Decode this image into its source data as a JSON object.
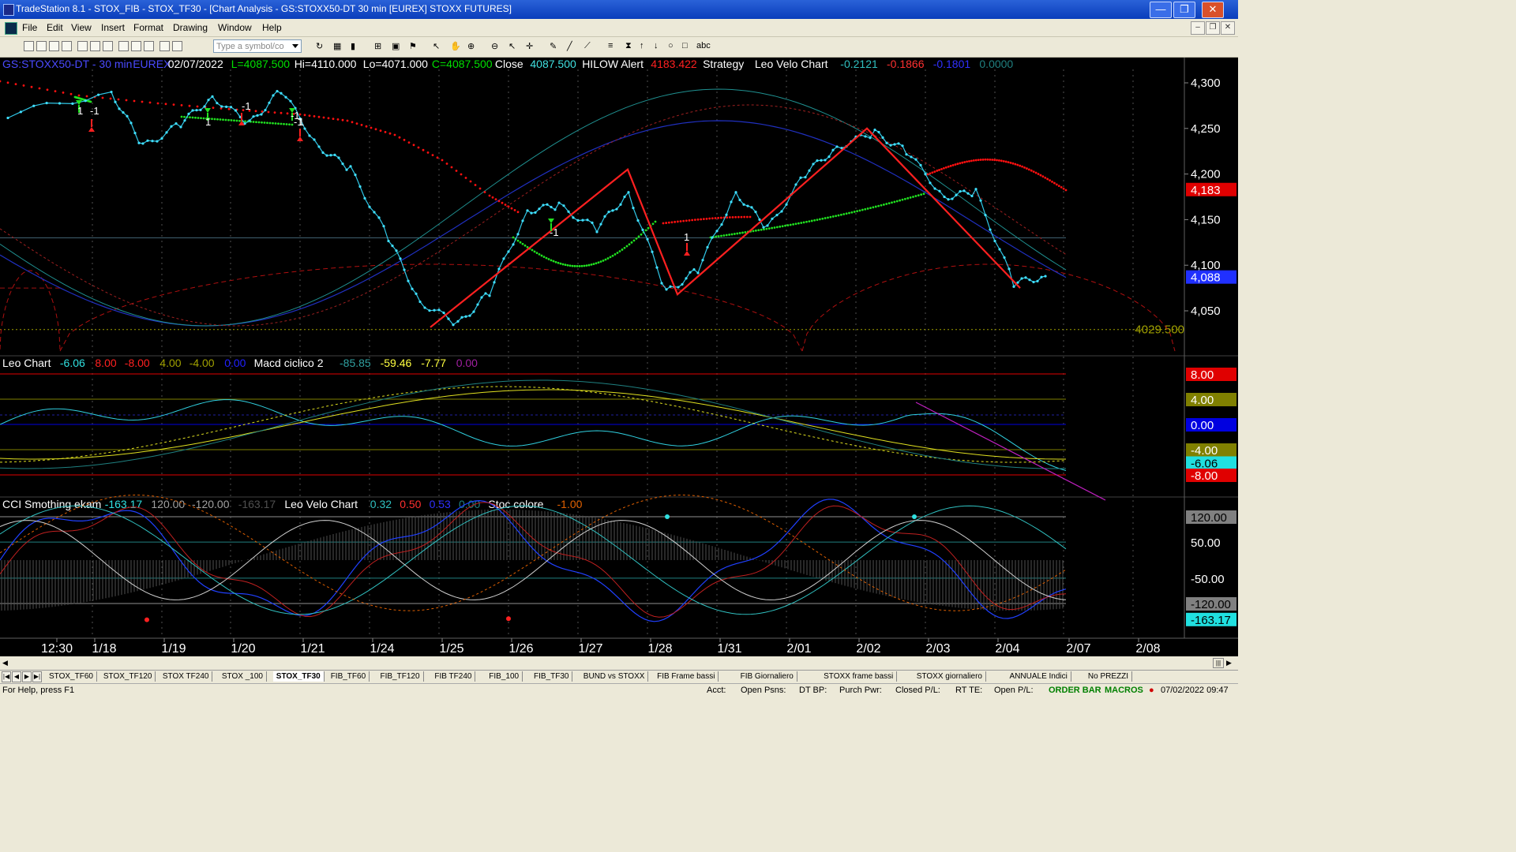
{
  "window": {
    "title": "TradeStation 8.1 - STOX_FIB - STOX_TF30 - [Chart Analysis - GS:STOXX50-DT  30 min  [EUREX] STOXX FUTURES]"
  },
  "window_controls": {
    "minimize": "—",
    "restore": "❐",
    "close": "✕"
  },
  "menu": {
    "items": [
      "File",
      "Edit",
      "View",
      "Insert",
      "Format",
      "Drawing",
      "Window",
      "Help"
    ]
  },
  "toolbar": {
    "symbol_placeholder": "Type a symbol/co"
  },
  "chart": {
    "header": [
      {
        "text": "GS:STOXX50-DT - 30 min",
        "color": "#4a4aff"
      },
      {
        "text": "EUREX",
        "color": "#4a4aff"
      },
      {
        "text": "02/07/2022",
        "color": "#ffffff"
      },
      {
        "text": "L=4087.500",
        "color": "#00e000"
      },
      {
        "text": "Hi=4110.000",
        "color": "#ffffff"
      },
      {
        "text": "Lo=4071.000",
        "color": "#ffffff"
      },
      {
        "text": "C=4087.500",
        "color": "#00e000"
      },
      {
        "text": "Close",
        "color": "#ffffff"
      },
      {
        "text": "4087.500",
        "color": "#40e0e0"
      },
      {
        "text": "HILOW Alert",
        "color": "#ffffff"
      },
      {
        "text": "4183.422",
        "color": "#ff2020"
      },
      {
        "text": "Strategy",
        "color": "#ffffff"
      },
      {
        "text": "Leo Velo Chart",
        "color": "#ffffff"
      },
      {
        "text": "-0.2121",
        "color": "#30c0c0"
      },
      {
        "text": "-0.1866",
        "color": "#ff3030"
      },
      {
        "text": "-0.1801",
        "color": "#3030ff"
      },
      {
        "text": "0.0000",
        "color": "#208080"
      }
    ],
    "price_axis": [
      "4,300",
      "4,250",
      "4,200",
      "4,150",
      "4,100",
      "4,050"
    ],
    "price_tags": [
      {
        "text": "4,183",
        "bg": "#e00000",
        "fg": "#ffffff"
      },
      {
        "text": "4,088",
        "bg": "#2030ff",
        "fg": "#ffffff"
      }
    ],
    "hline_label": "4029.500",
    "arrow_labels": [
      "1",
      "-1",
      "1",
      "-1",
      "-1",
      "1",
      "-1",
      "1",
      "-1"
    ],
    "pane2_header": [
      {
        "text": "Leo Chart",
        "color": "#ffffff"
      },
      {
        "text": "-6.06",
        "color": "#30e0e0"
      },
      {
        "text": "8.00",
        "color": "#ff2020"
      },
      {
        "text": "-8.00",
        "color": "#ff2020"
      },
      {
        "text": "4.00",
        "color": "#a0a000"
      },
      {
        "text": "-4.00",
        "color": "#a0a000"
      },
      {
        "text": "0.00",
        "color": "#2020ff"
      },
      {
        "text": "Macd ciclico 2",
        "color": "#ffffff"
      },
      {
        "text": "-85.85",
        "color": "#30a0a0"
      },
      {
        "text": "-59.46",
        "color": "#ffff40"
      },
      {
        "text": "-7.77",
        "color": "#ffff40"
      },
      {
        "text": "0.00",
        "color": "#a020a0"
      }
    ],
    "pane2_tags": [
      {
        "text": "8.00",
        "bg": "#e00000",
        "fg": "#ffffff"
      },
      {
        "text": "4.00",
        "bg": "#808000",
        "fg": "#ffffff"
      },
      {
        "text": "0.00",
        "bg": "#0000e0",
        "fg": "#ffffff"
      },
      {
        "text": "-4.00",
        "bg": "#808000",
        "fg": "#ffffff"
      },
      {
        "text": "-6.06",
        "bg": "#20e0e0",
        "fg": "#000000"
      },
      {
        "text": "-8.00",
        "bg": "#e00000",
        "fg": "#ffffff"
      }
    ],
    "pane3_header": [
      {
        "text": "CCI Smothing ekam",
        "color": "#ffffff"
      },
      {
        "text": "-163.17",
        "color": "#30e0e0"
      },
      {
        "text": "120.00",
        "color": "#a0a0a0"
      },
      {
        "text": "-120.00",
        "color": "#a0a0a0"
      },
      {
        "text": "-163.17",
        "color": "#505050"
      },
      {
        "text": "Leo Velo Chart",
        "color": "#ffffff"
      },
      {
        "text": "0.32",
        "color": "#30c0c0"
      },
      {
        "text": "0.50",
        "color": "#ff3030"
      },
      {
        "text": "0.53",
        "color": "#3030ff"
      },
      {
        "text": "0.00",
        "color": "#208080"
      },
      {
        "text": "Stoc colore",
        "color": "#ffffff"
      },
      {
        "text": "-1.00",
        "color": "#e06000"
      }
    ],
    "pane3_tags": [
      {
        "text": "120.00",
        "bg": "#808080",
        "fg": "#000000"
      },
      {
        "text": "50.00",
        "bg": "#000000",
        "fg": "#ffffff"
      },
      {
        "text": "-50.00",
        "bg": "#000000",
        "fg": "#ffffff"
      },
      {
        "text": "-120.00",
        "bg": "#808080",
        "fg": "#000000"
      },
      {
        "text": "-163.17",
        "bg": "#20e0e0",
        "fg": "#000000"
      }
    ],
    "time_axis": [
      "12:30",
      "1/18",
      "1/19",
      "1/20",
      "1/21",
      "1/24",
      "1/25",
      "1/26",
      "1/27",
      "1/28",
      "1/31",
      "2/01",
      "2/02",
      "2/03",
      "2/04",
      "2/07",
      "2/08"
    ]
  },
  "chart_data": {
    "type": "line",
    "title": "GS:STOXX50-DT - 30 min",
    "x_ticks": [
      "12:30",
      "1/18",
      "1/19",
      "1/20",
      "1/21",
      "1/24",
      "1/25",
      "1/26",
      "1/27",
      "1/28",
      "1/31",
      "2/01",
      "2/02",
      "2/03",
      "2/04",
      "2/07",
      "2/08"
    ],
    "ylim": [
      4000,
      4320
    ],
    "price_close_series": {
      "x": [
        "1/17",
        "1/18",
        "1/18",
        "1/19",
        "1/19",
        "1/20",
        "1/20",
        "1/21",
        "1/21",
        "1/24",
        "1/24",
        "1/25",
        "1/25",
        "1/26",
        "1/26",
        "1/27",
        "1/27",
        "1/28",
        "1/28",
        "1/31",
        "1/31",
        "2/01",
        "2/01",
        "2/02",
        "2/02",
        "2/03",
        "2/03",
        "2/04",
        "2/04"
      ],
      "values": [
        4265,
        4290,
        4230,
        4255,
        4285,
        4255,
        4292,
        4230,
        4205,
        4130,
        4060,
        4035,
        4070,
        4160,
        4165,
        4140,
        4180,
        4070,
        4095,
        4180,
        4140,
        4200,
        4230,
        4245,
        4225,
        4175,
        4180,
        4080,
        4088
      ]
    },
    "zigzag": {
      "x": [
        "1/25",
        "1/27",
        "1/28",
        "2/02",
        "2/04"
      ],
      "values": [
        4032,
        4205,
        4068,
        4250,
        4075
      ]
    },
    "alert_level": 4183.422,
    "last_price": 4087.5,
    "reference_level": 4029.5
  },
  "tabs": [
    "STOX_TF60",
    "STOX_TF120",
    "STOX TF240",
    "STOX _100",
    "STOX_TF30",
    "FIB_TF60",
    "FIB_TF120",
    "FIB TF240",
    "FIB_100",
    "FIB_TF30",
    "BUND vs STOXX",
    "FIB Frame bassi",
    "FIB Giornaliero",
    "STOXX frame bassi",
    "STOXX giornaliero",
    "ANNUALE Indici",
    "No PREZZI"
  ],
  "active_tab": "STOX_TF30",
  "status": {
    "help": "For Help, press F1",
    "acct": "Acct:",
    "open_psns": "Open Psns:",
    "dt_bp": "DT BP:",
    "purch_pwr": "Purch Pwr:",
    "closed_pl": "Closed P/L:",
    "rt_te": "RT TE:",
    "open_pl": "Open P/L:",
    "order_bar": "ORDER BAR",
    "macros": "MACROS",
    "datetime": "07/02/2022 09:47"
  }
}
